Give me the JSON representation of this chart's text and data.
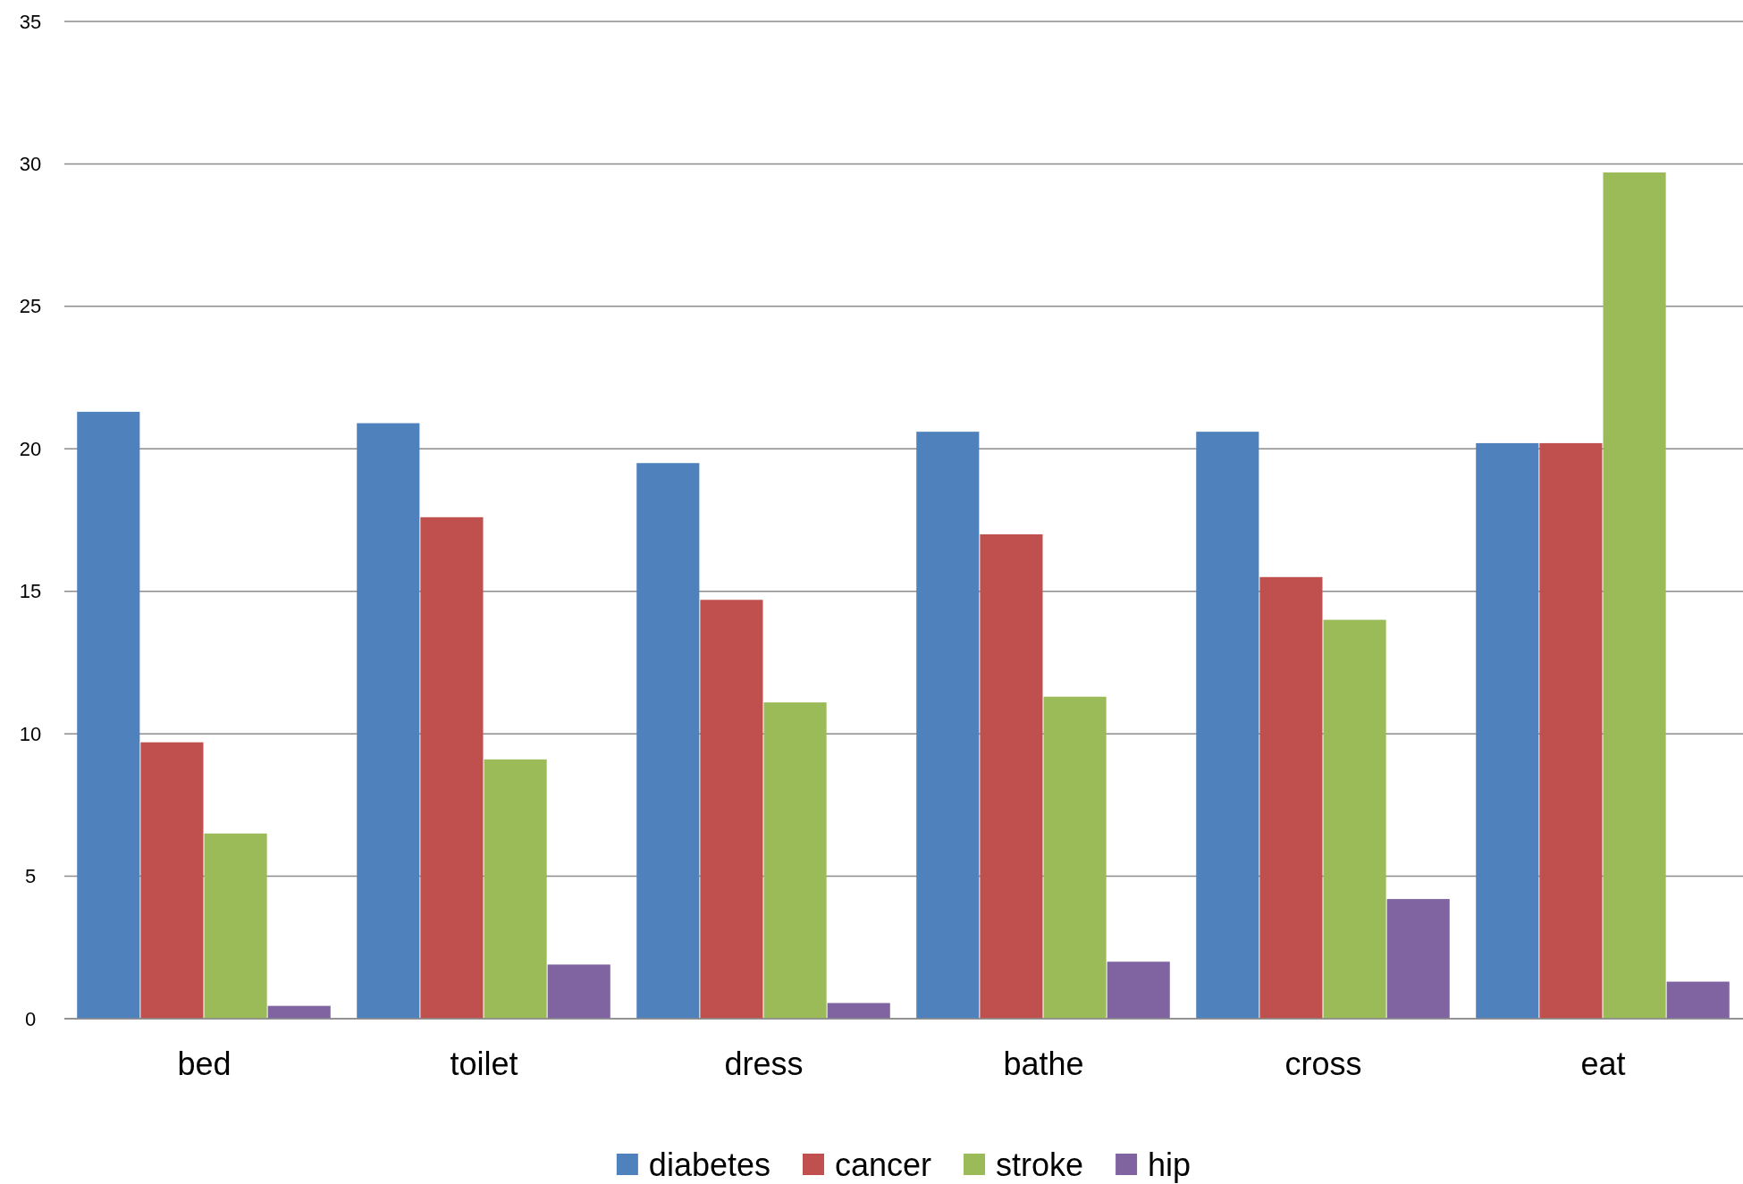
{
  "chart_data": {
    "type": "bar",
    "categories": [
      "bed",
      "toilet",
      "dress",
      "bathe",
      "cross",
      "eat"
    ],
    "series": [
      {
        "name": "diabetes",
        "color": "#4f81bd",
        "values": [
          21.3,
          20.9,
          19.5,
          20.6,
          20.6,
          20.2
        ]
      },
      {
        "name": "cancer",
        "color": "#c0504d",
        "values": [
          9.7,
          17.6,
          14.7,
          17.0,
          15.5,
          20.2
        ]
      },
      {
        "name": "stroke",
        "color": "#9bbb59",
        "values": [
          6.5,
          9.1,
          11.1,
          11.3,
          14.0,
          29.7
        ]
      },
      {
        "name": "hip",
        "color": "#8064a2",
        "values": [
          0.45,
          1.9,
          0.55,
          2.0,
          4.2,
          1.3
        ]
      }
    ],
    "ylim": [
      0,
      35
    ],
    "yticks": [
      0,
      5,
      10,
      15,
      20,
      25,
      30,
      35
    ],
    "grid": "y",
    "legend": "bottom"
  }
}
